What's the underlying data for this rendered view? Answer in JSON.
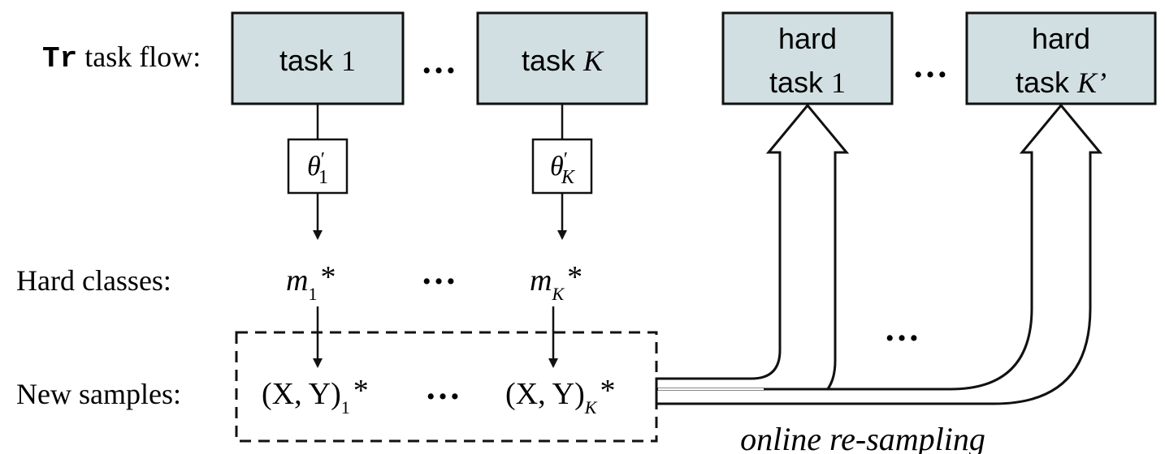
{
  "row_labels": {
    "task_flow_prefix": "Tr",
    "task_flow": " task flow:",
    "hard_classes": "Hard classes:",
    "new_samples": "New samples:"
  },
  "tasks": [
    {
      "word": "task",
      "index": "1",
      "param_base": "θ",
      "param_prime": "′",
      "param_sub": "1",
      "hard_base": "m",
      "hard_sub": "1",
      "hard_star": "*",
      "sample_base": "(X, Y)",
      "sample_sub": "1",
      "sample_star": "*"
    },
    {
      "word": "task",
      "index": "K",
      "param_base": "θ",
      "param_prime": "′",
      "param_sub": "K",
      "hard_base": "m",
      "hard_sub": "K",
      "hard_star": "*",
      "sample_base": "(X, Y)",
      "sample_sub": "K",
      "sample_star": "*"
    }
  ],
  "hard_tasks": [
    {
      "line1": "hard",
      "word": "task",
      "index": "1"
    },
    {
      "line1": "hard",
      "word": "task",
      "index": "K’"
    }
  ],
  "ellipsis": "…",
  "caption": "online re-sampling"
}
